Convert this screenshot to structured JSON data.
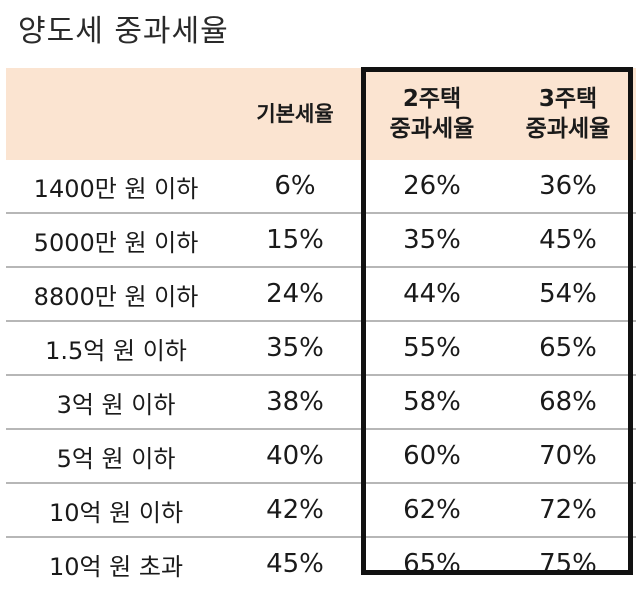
{
  "title": "양도세 중과세율",
  "header": {
    "col0": "",
    "col1": "기본세율",
    "col2_line1": "2주택",
    "col2_line2": "중과세율",
    "col3_line1": "3주택",
    "col3_line2": "중과세율"
  },
  "rows": [
    {
      "bracket": "1400만 원 이하",
      "base": "6%",
      "two": "26%",
      "three": "36%"
    },
    {
      "bracket": "5000만 원 이하",
      "base": "15%",
      "two": "35%",
      "three": "45%"
    },
    {
      "bracket": "8800만 원 이하",
      "base": "24%",
      "two": "44%",
      "three": "54%"
    },
    {
      "bracket": "1.5억 원 이하",
      "base": "35%",
      "two": "55%",
      "three": "65%"
    },
    {
      "bracket": "3억 원 이하",
      "base": "38%",
      "two": "58%",
      "three": "68%"
    },
    {
      "bracket": "5억 원 이하",
      "base": "40%",
      "two": "60%",
      "three": "70%"
    },
    {
      "bracket": "10억 원 이하",
      "base": "42%",
      "two": "62%",
      "three": "72%"
    },
    {
      "bracket": "10억 원 초과",
      "base": "45%",
      "two": "65%",
      "three": "75%"
    }
  ],
  "colors": {
    "header_bg": "#fbe4d1",
    "highlight_border": "#111111",
    "row_divider": "#b7b7b7"
  }
}
